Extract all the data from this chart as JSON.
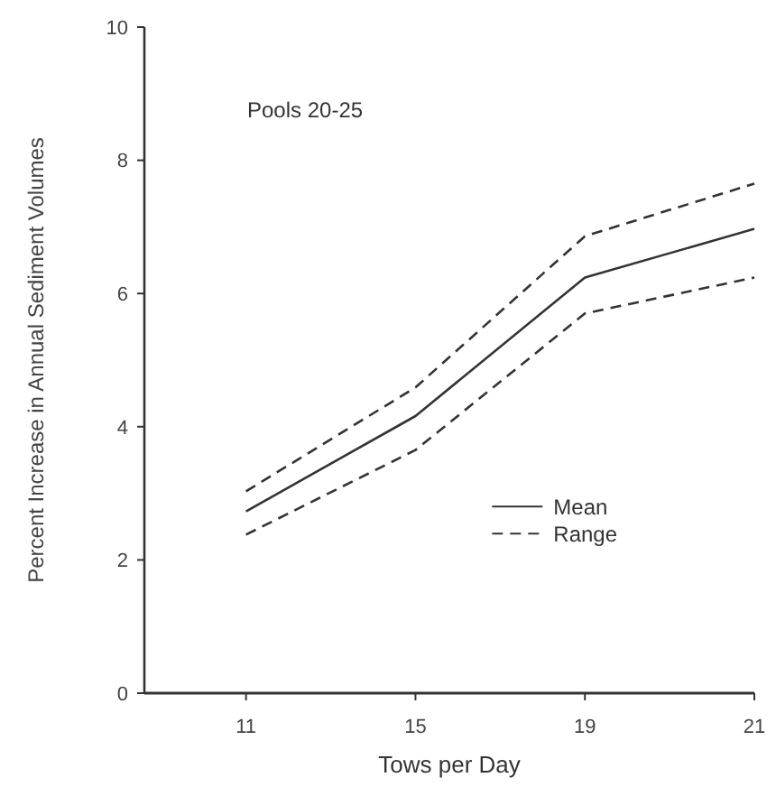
{
  "chart_data": {
    "type": "line",
    "xlabel": "Tows per Day",
    "ylabel": "Percent Increase in Annual Sediment Volumes",
    "annotations": [
      "Pools 20-25"
    ],
    "categories": [
      "11",
      "15",
      "19",
      "21"
    ],
    "ylim": [
      0,
      10
    ],
    "yticks": [
      0,
      2,
      4,
      6,
      8,
      10
    ],
    "grid": false,
    "legend": "bottom right",
    "marker": "none",
    "series": [
      {
        "name": "Mean",
        "color": "#333333",
        "line_style": "solid",
        "values": [
          2.73,
          4.16,
          6.24,
          6.97
        ]
      },
      {
        "name": "Range",
        "color": "#333333",
        "line_style": "dashed",
        "values": [
          3.03,
          4.59,
          6.86,
          7.65
        ]
      },
      {
        "color": "#333333",
        "line_style": "dashed",
        "values": [
          2.38,
          3.65,
          5.7,
          6.24
        ]
      }
    ]
  }
}
